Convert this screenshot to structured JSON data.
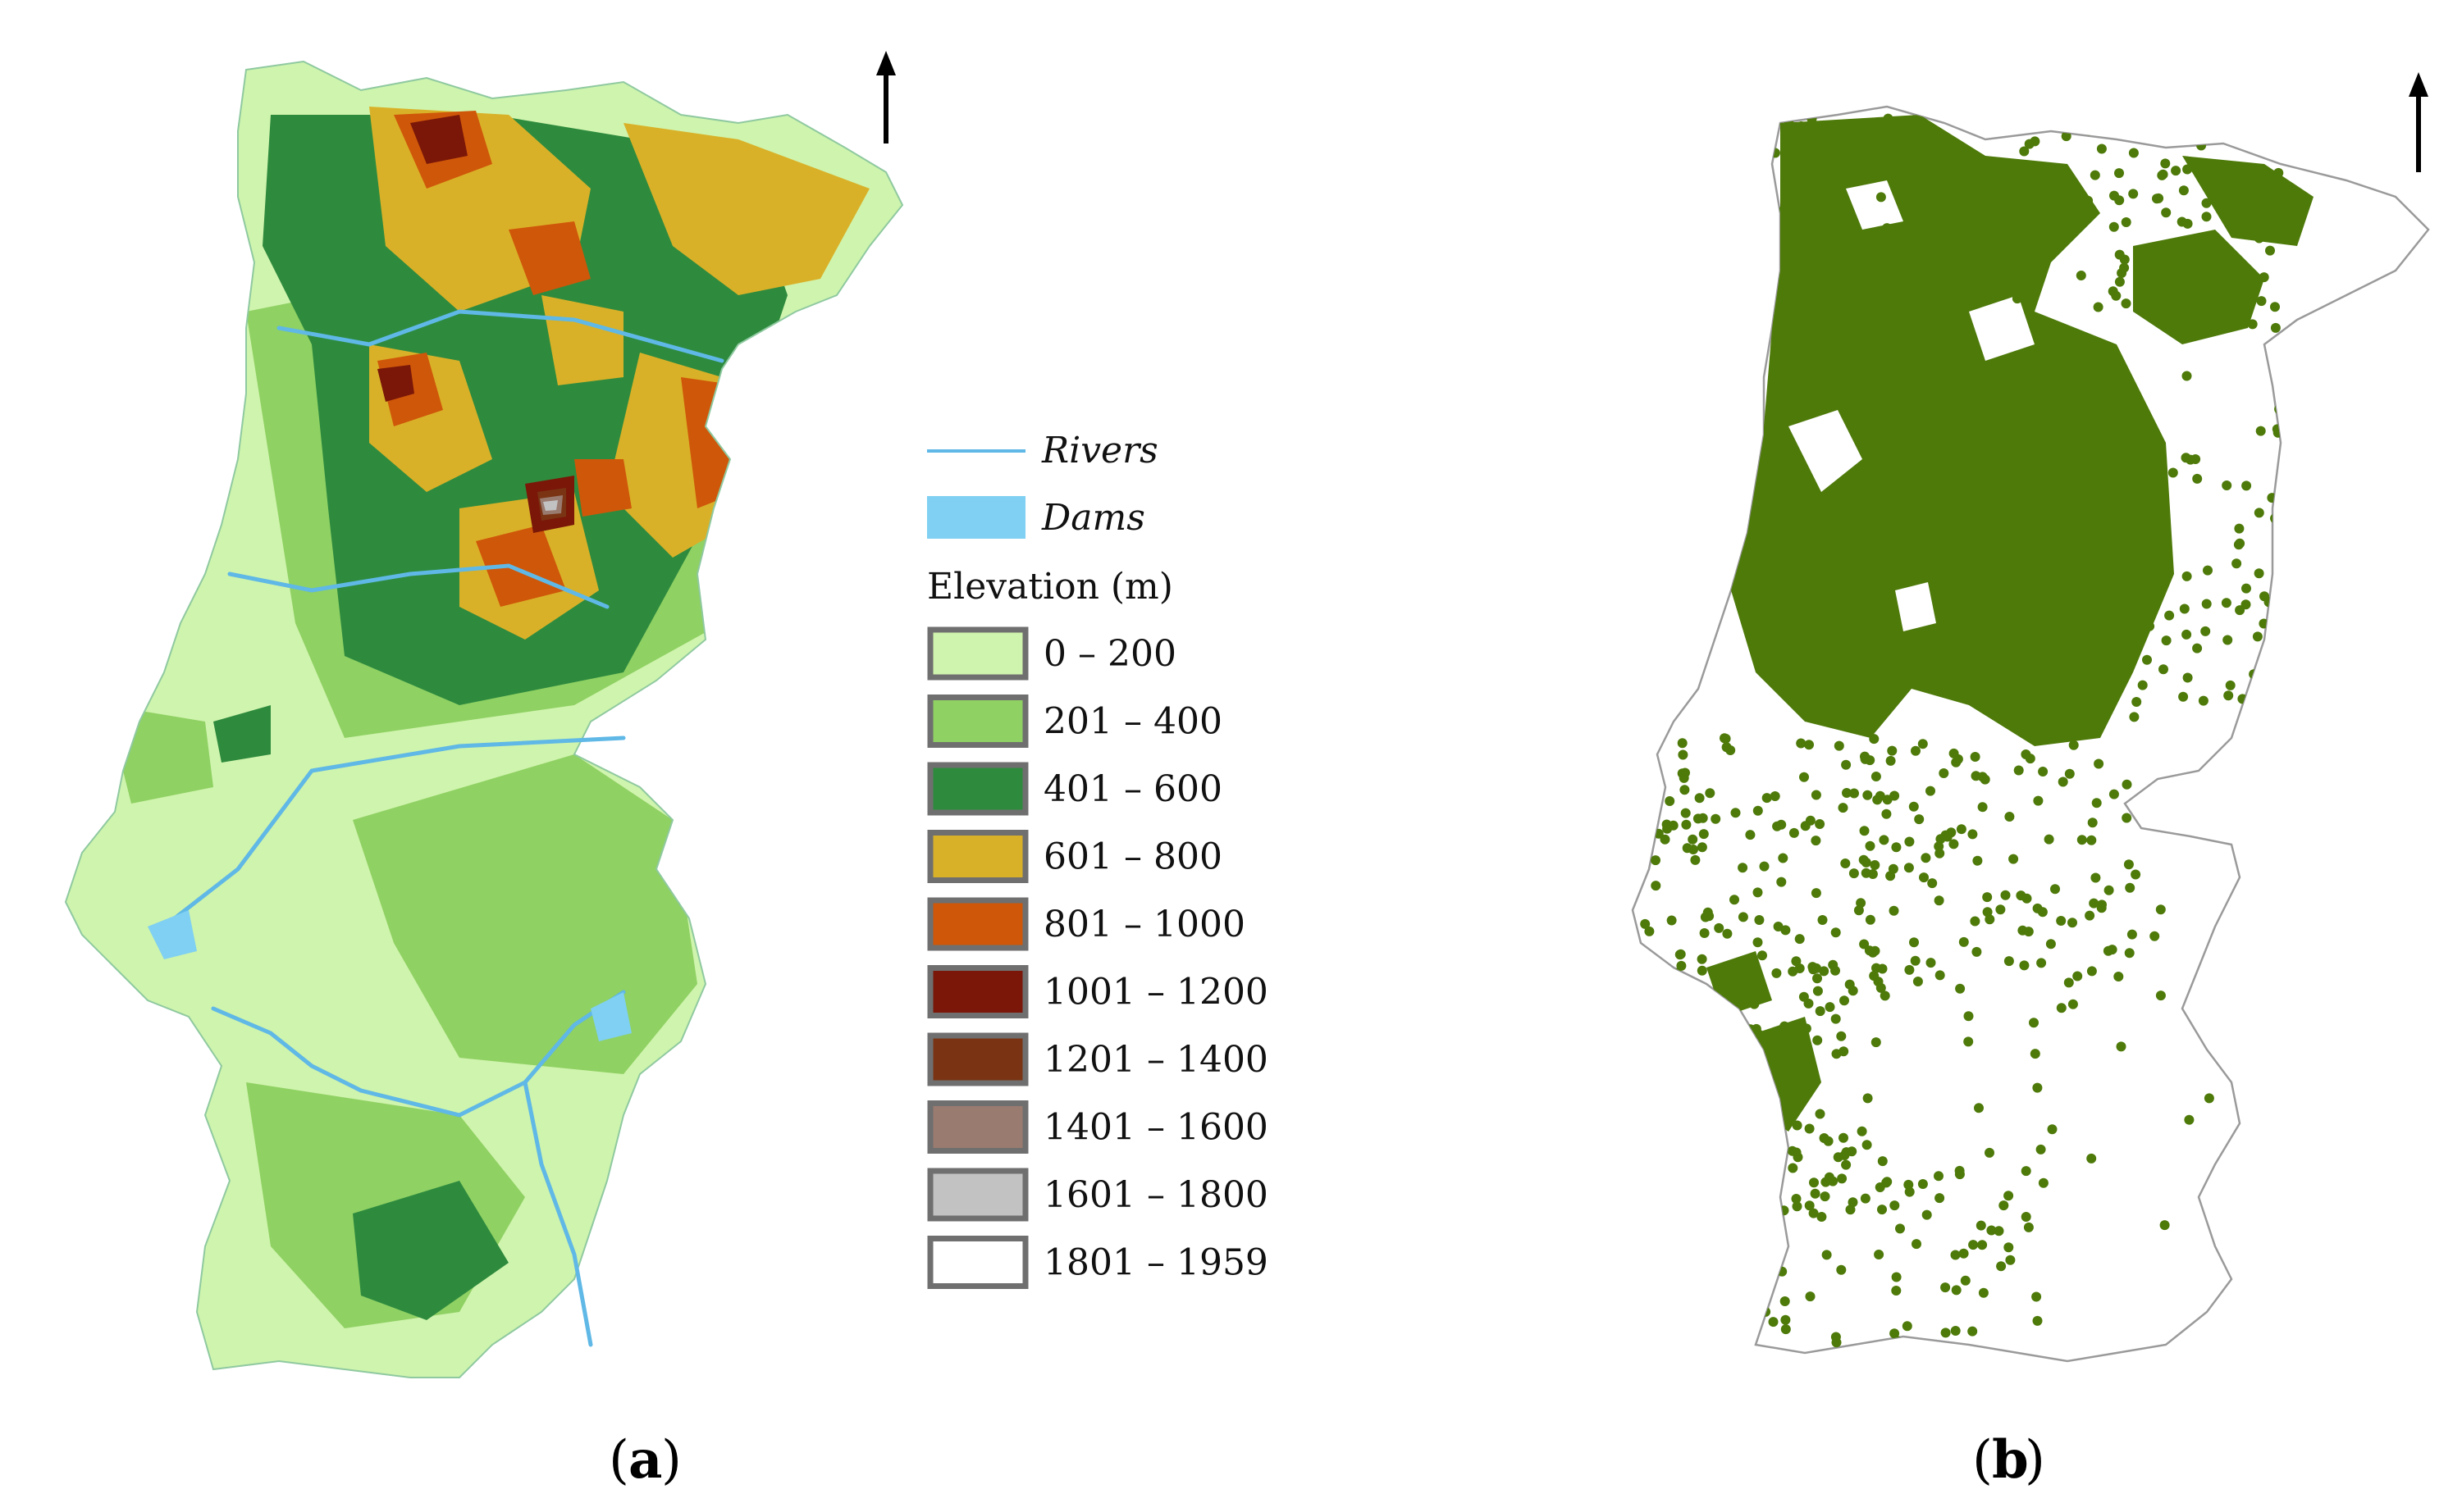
{
  "panel_a": {
    "caption_letter": "a",
    "legend": {
      "rivers_label": "Rivers",
      "dams_label": "Dams",
      "elevation_title": "Elevation (m)",
      "classes": [
        {
          "label": "0 – 200",
          "color": "#cff4ad"
        },
        {
          "label": "201 – 400",
          "color": "#8fd163"
        },
        {
          "label": "401 – 600",
          "color": "#2e8b3e"
        },
        {
          "label": "601 – 800",
          "color": "#d9b128"
        },
        {
          "label": "801 – 1000",
          "color": "#cf5709"
        },
        {
          "label": "1001 – 1200",
          "color": "#7a1708"
        },
        {
          "label": "1201 – 1400",
          "color": "#7a3414"
        },
        {
          "label": "1401 – 1600",
          "color": "#9a7b6f"
        },
        {
          "label": "1601 – 1800",
          "color": "#c2c2c2"
        },
        {
          "label": "1801 – 1959",
          "color": "#ffffff"
        }
      ],
      "river_color": "#5fb8e6",
      "dam_color": "#7fd0f2"
    },
    "north_arrow_icon": "north-arrow-icon"
  },
  "panel_b": {
    "caption_letter": "b",
    "point_color": "#4e7a0a",
    "outline_color": "#9a9a9a",
    "north_arrow_icon": "north-arrow-icon"
  }
}
